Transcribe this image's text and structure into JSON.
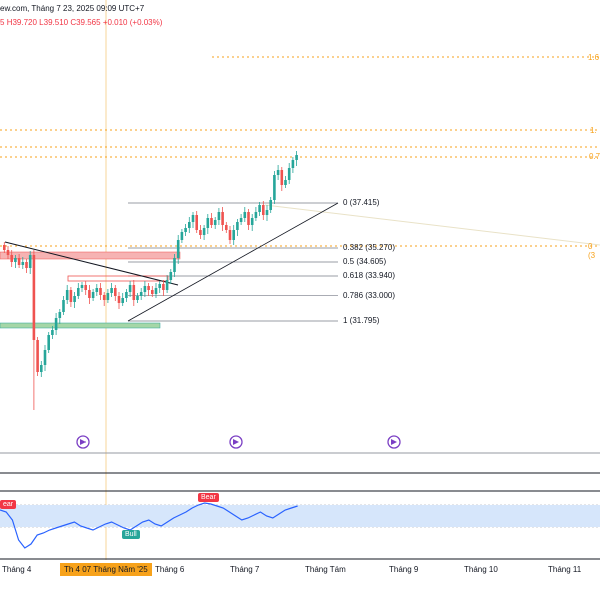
{
  "header": {
    "source": "ew.com, Tháng 7 23, 2025 09:09 UTC+7",
    "open_frag": "5",
    "high": "H39.720",
    "low": "L39.510",
    "close": "C39.565",
    "change": "+0.010 (+0.03%)"
  },
  "fib_levels": [
    {
      "label": "0 (37.415)",
      "price": 37.415
    },
    {
      "label": "0.382 (35.270)",
      "price": 35.27
    },
    {
      "label": "0.5 (34.605)",
      "price": 34.605
    },
    {
      "label": "0.618 (33.940)",
      "price": 33.94
    },
    {
      "label": "0.786 (33.000)",
      "price": 33.0
    },
    {
      "label": "1 (31.795)",
      "price": 31.795
    }
  ],
  "right_labels": [
    "1.6",
    "1.",
    "0.7",
    "0 (3"
  ],
  "date_axis": {
    "labels": [
      "Tháng 4",
      "Tháng 6",
      "Tháng 7",
      "Tháng Tám",
      "Tháng 9",
      "Tháng 10",
      "Tháng 11"
    ],
    "highlight": "Th 4 07 Tháng Năm '25"
  },
  "indicator": {
    "bear_label_1": "ear",
    "bear_label_2": "Bear",
    "bull_label": "Bull"
  },
  "colors": {
    "up": "#26a69a",
    "down": "#ef5350",
    "fib_gold": "#f7a21b",
    "indicator_line": "#2962ff",
    "indicator_fill": "#d6e6fb",
    "resistance_zone": "#f6b3b3",
    "support_zone": "#a5d6a7"
  },
  "icons": [
    "play-circle-icon",
    "play-circle-icon",
    "play-circle-icon"
  ]
}
